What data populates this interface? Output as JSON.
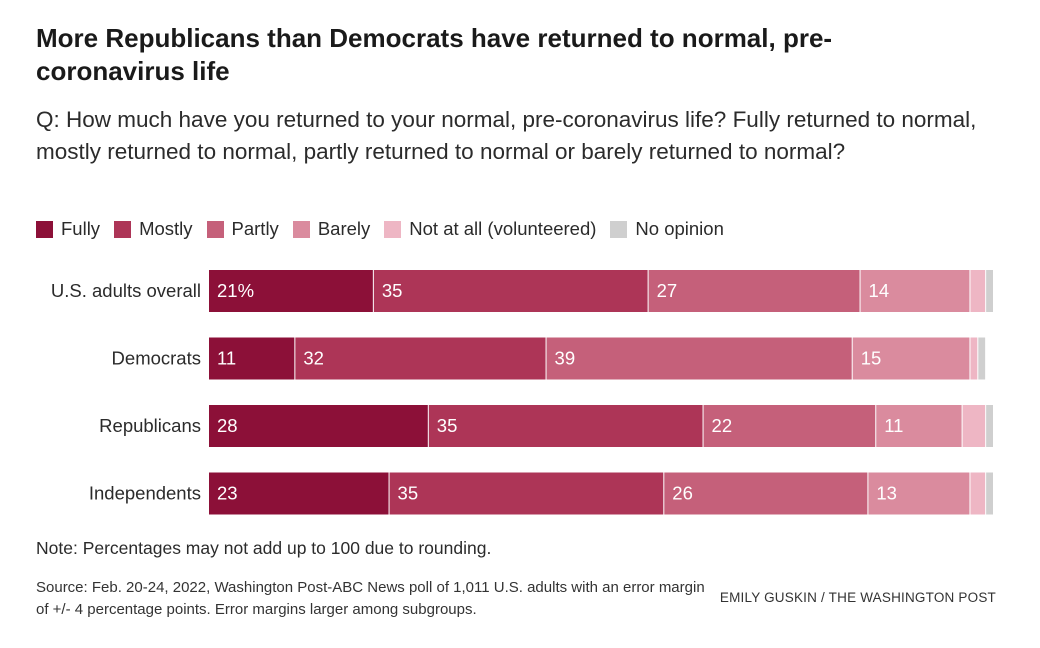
{
  "title": "More Republicans than Democrats have returned to normal, pre-coronavirus life",
  "subtitle": "Q: How much have you returned to your normal, pre-coronavirus life? Fully returned to normal, mostly returned to normal, partly returned to normal or barely returned to normal?",
  "note": "Note: Percentages may not add up to 100 due to rounding.",
  "source": "Source: Feb. 20-24, 2022, Washington Post-ABC News poll of 1,011 U.S. adults with an error margin of +/- 4 percentage points. Error margins larger among subgroups.",
  "credit": "EMILY GUSKIN / THE WASHINGTON POST",
  "chart_data": {
    "type": "bar",
    "orientation": "horizontal",
    "stacked": true,
    "categories": [
      "U.S. adults overall",
      "Democrats",
      "Republicans",
      "Independents"
    ],
    "series": [
      {
        "name": "Fully",
        "color": "#8c1038",
        "values": [
          21,
          11,
          28,
          23
        ]
      },
      {
        "name": "Mostly",
        "color": "#ad3557",
        "values": [
          35,
          32,
          35,
          35
        ]
      },
      {
        "name": "Partly",
        "color": "#c5607a",
        "values": [
          27,
          39,
          22,
          26
        ]
      },
      {
        "name": "Barely",
        "color": "#da8b9e",
        "values": [
          14,
          15,
          11,
          13
        ]
      },
      {
        "name": "Not at all (volunteered)",
        "color": "#eeb6c4",
        "values": [
          2,
          1,
          3,
          2
        ]
      },
      {
        "name": "No opinion",
        "color": "#cfcfcf",
        "values": [
          1,
          1,
          1,
          1
        ]
      }
    ],
    "data_labels": [
      [
        "21%",
        "35",
        "27",
        "14",
        "",
        ""
      ],
      [
        "11",
        "32",
        "39",
        "15",
        "",
        ""
      ],
      [
        "28",
        "35",
        "22",
        "11",
        "",
        ""
      ],
      [
        "23",
        "35",
        "26",
        "13",
        "",
        ""
      ]
    ],
    "xlim": [
      0,
      100
    ],
    "grid": false,
    "legend_position": "top"
  }
}
